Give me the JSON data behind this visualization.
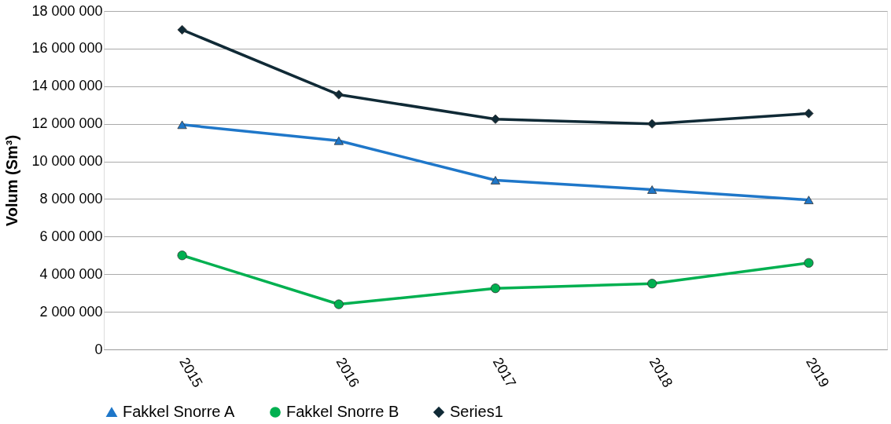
{
  "chart_data": {
    "type": "line",
    "ylabel": "Volum (Sm³)",
    "categories": [
      "2015",
      "2016",
      "2017",
      "2018",
      "2019"
    ],
    "series": [
      {
        "name": "Fakkel Snorre A",
        "color": "#1f77c9",
        "marker": "triangle",
        "values": [
          11950000,
          11100000,
          9000000,
          8500000,
          7950000
        ]
      },
      {
        "name": "Fakkel Snorre B",
        "color": "#00b050",
        "marker": "circle",
        "values": [
          5000000,
          2400000,
          3250000,
          3500000,
          4600000
        ]
      },
      {
        "name": "Series1",
        "color": "#102a36",
        "marker": "diamond",
        "values": [
          17000000,
          13550000,
          12250000,
          12000000,
          12550000
        ]
      }
    ],
    "ylim": [
      0,
      18000000
    ],
    "yticks": [
      {
        "value": 0,
        "label": "0"
      },
      {
        "value": 2000000,
        "label": "2 000 000"
      },
      {
        "value": 4000000,
        "label": "4 000 000"
      },
      {
        "value": 6000000,
        "label": "6 000 000"
      },
      {
        "value": 8000000,
        "label": "8 000 000"
      },
      {
        "value": 10000000,
        "label": "10 000 000"
      },
      {
        "value": 12000000,
        "label": "12 000 000"
      },
      {
        "value": 14000000,
        "label": "14 000 000"
      },
      {
        "value": 16000000,
        "label": "16 000 000"
      },
      {
        "value": 18000000,
        "label": "18 000 000"
      }
    ],
    "grid": "y",
    "legend": "bottom",
    "line_style": "solid"
  }
}
